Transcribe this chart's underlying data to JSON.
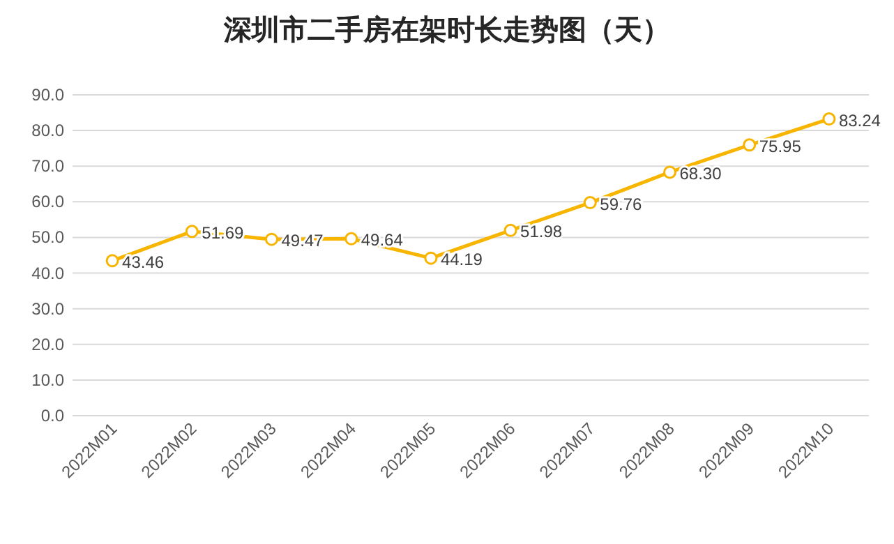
{
  "chart_data": {
    "type": "line",
    "title": "深圳市二手房在架时长走势图（天）",
    "categories": [
      "2022M01",
      "2022M02",
      "2022M03",
      "2022M04",
      "2022M05",
      "2022M06",
      "2022M07",
      "2022M08",
      "2022M09",
      "2022M10"
    ],
    "series": [
      {
        "color": "#f7b500",
        "values": [
          43.46,
          51.69,
          49.47,
          49.64,
          44.19,
          51.98,
          59.76,
          68.3,
          75.95,
          83.24
        ],
        "value_labels": [
          "43.46",
          "51.69",
          "49.47",
          "49.64",
          "44.19",
          "51.98",
          "59.76",
          "68.30",
          "75.95",
          "83.24"
        ]
      }
    ],
    "ylim": [
      0,
      90
    ],
    "yticks": [
      {
        "value": 0,
        "label": "0.0"
      },
      {
        "value": 10,
        "label": "10.0"
      },
      {
        "value": 20,
        "label": "20.0"
      },
      {
        "value": 30,
        "label": "30.0"
      },
      {
        "value": 40,
        "label": "40.0"
      },
      {
        "value": 50,
        "label": "50.0"
      },
      {
        "value": 60,
        "label": "60.0"
      },
      {
        "value": 70,
        "label": "70.0"
      },
      {
        "value": 80,
        "label": "80.0"
      },
      {
        "value": 90,
        "label": "90.0"
      }
    ],
    "grid": "y",
    "marker": "circle",
    "line_style": "solid"
  }
}
